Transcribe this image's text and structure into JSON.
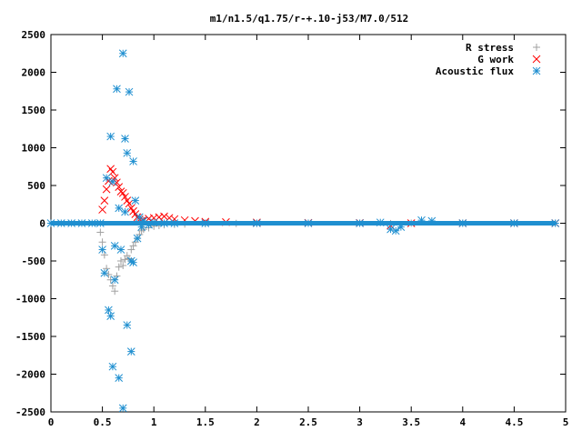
{
  "chart_data": {
    "type": "scatter",
    "title": "m1/n1.5/q1.75/r-+.10-j53/M7.0/512",
    "xlabel": "",
    "ylabel": "",
    "xlim": [
      0,
      5
    ],
    "ylim": [
      -2500,
      2500
    ],
    "x_ticks": [
      "0",
      "0.5",
      "1",
      "1.5",
      "2",
      "2.5",
      "3",
      "3.5",
      "4",
      "4.5",
      "5"
    ],
    "y_ticks": [
      "2500",
      "2000",
      "1500",
      "1000",
      "500",
      "0",
      "-500",
      "-1000",
      "-1500",
      "-2000",
      "-2500"
    ],
    "grid": false,
    "legend_position": "top-right",
    "series": [
      {
        "name": "R stress",
        "marker": "plus",
        "color": "#a0a0a0",
        "points": [
          [
            0.48,
            -120
          ],
          [
            0.5,
            -250
          ],
          [
            0.52,
            -420
          ],
          [
            0.54,
            -600
          ],
          [
            0.56,
            -680
          ],
          [
            0.58,
            -750
          ],
          [
            0.6,
            -830
          ],
          [
            0.62,
            -900
          ],
          [
            0.64,
            -700
          ],
          [
            0.66,
            -580
          ],
          [
            0.68,
            -500
          ],
          [
            0.7,
            -560
          ],
          [
            0.72,
            -480
          ],
          [
            0.74,
            -430
          ],
          [
            0.76,
            -470
          ],
          [
            0.78,
            -350
          ],
          [
            0.8,
            -300
          ],
          [
            0.82,
            -250
          ],
          [
            0.84,
            -200
          ],
          [
            0.86,
            -150
          ],
          [
            0.88,
            -100
          ],
          [
            0.9,
            -80
          ],
          [
            0.95,
            -60
          ],
          [
            1.0,
            -40
          ],
          [
            1.05,
            -30
          ],
          [
            1.1,
            -20
          ],
          [
            1.2,
            -15
          ],
          [
            1.3,
            -10
          ],
          [
            1.5,
            -5
          ],
          [
            1.8,
            -3
          ],
          [
            2.0,
            -2
          ],
          [
            2.5,
            0
          ],
          [
            3.0,
            0
          ],
          [
            3.3,
            -5
          ],
          [
            3.5,
            0
          ],
          [
            4.0,
            0
          ],
          [
            4.5,
            0
          ],
          [
            4.9,
            0
          ]
        ]
      },
      {
        "name": "G work",
        "marker": "cross",
        "color": "#ff0000",
        "points": [
          [
            0.5,
            180
          ],
          [
            0.52,
            300
          ],
          [
            0.54,
            450
          ],
          [
            0.56,
            560
          ],
          [
            0.58,
            720
          ],
          [
            0.6,
            680
          ],
          [
            0.62,
            600
          ],
          [
            0.64,
            540
          ],
          [
            0.66,
            480
          ],
          [
            0.68,
            420
          ],
          [
            0.7,
            400
          ],
          [
            0.72,
            350
          ],
          [
            0.74,
            300
          ],
          [
            0.76,
            260
          ],
          [
            0.78,
            200
          ],
          [
            0.8,
            160
          ],
          [
            0.82,
            120
          ],
          [
            0.84,
            80
          ],
          [
            0.86,
            50
          ],
          [
            0.88,
            30
          ],
          [
            0.9,
            40
          ],
          [
            0.95,
            60
          ],
          [
            1.0,
            70
          ],
          [
            1.05,
            80
          ],
          [
            1.1,
            90
          ],
          [
            1.15,
            70
          ],
          [
            1.2,
            55
          ],
          [
            1.3,
            40
          ],
          [
            1.4,
            30
          ],
          [
            1.5,
            20
          ],
          [
            1.7,
            15
          ],
          [
            2.0,
            10
          ],
          [
            2.5,
            5
          ],
          [
            3.0,
            3
          ],
          [
            3.3,
            -30
          ],
          [
            3.5,
            0
          ],
          [
            4.0,
            0
          ],
          [
            4.5,
            0
          ],
          [
            4.9,
            0
          ]
        ]
      },
      {
        "name": "Acoustic flux",
        "marker": "star",
        "color": "#1f8fd0",
        "points": [
          [
            0.0,
            0
          ],
          [
            0.1,
            0
          ],
          [
            0.2,
            0
          ],
          [
            0.3,
            0
          ],
          [
            0.4,
            0
          ],
          [
            0.48,
            0
          ],
          [
            0.5,
            -350
          ],
          [
            0.52,
            -660
          ],
          [
            0.54,
            600
          ],
          [
            0.56,
            -1150
          ],
          [
            0.58,
            -1230
          ],
          [
            0.58,
            1150
          ],
          [
            0.6,
            -1900
          ],
          [
            0.6,
            550
          ],
          [
            0.62,
            -750
          ],
          [
            0.62,
            -300
          ],
          [
            0.64,
            1780
          ],
          [
            0.66,
            -2050
          ],
          [
            0.66,
            200
          ],
          [
            0.68,
            -350
          ],
          [
            0.7,
            2250
          ],
          [
            0.7,
            -2450
          ],
          [
            0.72,
            1120
          ],
          [
            0.72,
            150
          ],
          [
            0.74,
            -1350
          ],
          [
            0.74,
            930
          ],
          [
            0.76,
            1740
          ],
          [
            0.78,
            -1700
          ],
          [
            0.78,
            -500
          ],
          [
            0.8,
            820
          ],
          [
            0.8,
            -520
          ],
          [
            0.82,
            300
          ],
          [
            0.84,
            -200
          ],
          [
            0.86,
            80
          ],
          [
            0.88,
            -50
          ],
          [
            0.9,
            30
          ],
          [
            0.95,
            -20
          ],
          [
            1.0,
            10
          ],
          [
            1.1,
            0
          ],
          [
            1.2,
            0
          ],
          [
            1.5,
            0
          ],
          [
            2.0,
            0
          ],
          [
            2.5,
            0
          ],
          [
            3.0,
            0
          ],
          [
            3.2,
            10
          ],
          [
            3.3,
            -80
          ],
          [
            3.35,
            -100
          ],
          [
            3.4,
            -50
          ],
          [
            3.6,
            40
          ],
          [
            3.7,
            30
          ],
          [
            4.0,
            0
          ],
          [
            4.5,
            0
          ],
          [
            4.9,
            0
          ]
        ]
      }
    ]
  }
}
